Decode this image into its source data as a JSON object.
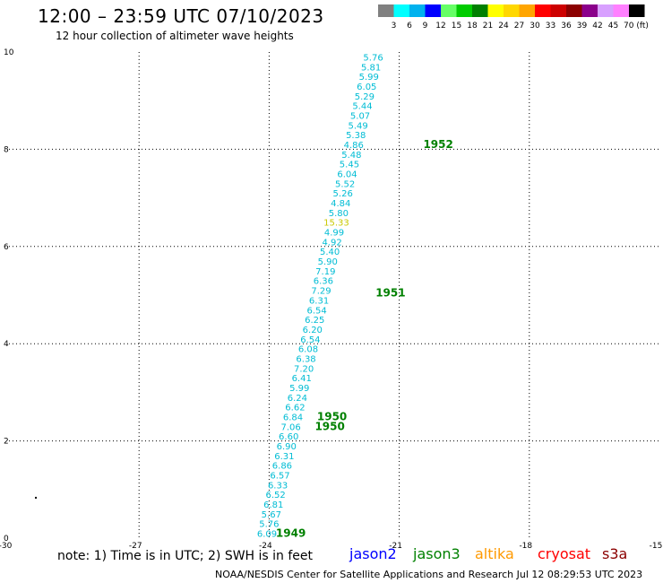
{
  "header": {
    "title": "12:00 – 23:59 UTC 07/10/2023",
    "subtitle": "12 hour collection of altimeter wave heights"
  },
  "footer": {
    "note": "note: 1) Time is in UTC; 2) SWH is in feet",
    "credits": "NOAA/NESDIS Center for Satellite Applications and Research    Jul 12 08:29:53 UTC 2023",
    "satellites": [
      {
        "name": "jason2",
        "color": "#0000ff"
      },
      {
        "name": "jason3",
        "color": "#008000"
      },
      {
        "name": "altika",
        "color": "#ff9900"
      },
      {
        "name": "cryosat",
        "color": "#ff0000"
      },
      {
        "name": "s3a",
        "color": "#8b0000"
      }
    ]
  },
  "color_scale": {
    "labels": [
      "3",
      "6",
      "9",
      "12",
      "15",
      "18",
      "21",
      "24",
      "27",
      "30",
      "33",
      "36",
      "39",
      "42",
      "45",
      "70 (ft)"
    ],
    "colors": [
      "#808080",
      "#00ffff",
      "#00b2ee",
      "#0000ff",
      "#66ff66",
      "#00cc00",
      "#008000",
      "#ffff00",
      "#ffd700",
      "#ffa500",
      "#ff0000",
      "#cd0000",
      "#8b0000",
      "#8b008b",
      "#d8a0ff",
      "#ff80ff",
      "#000000"
    ]
  },
  "chart_data": {
    "type": "scatter",
    "xlabel": "",
    "ylabel": "",
    "xlim": [
      -30,
      -15
    ],
    "ylim": [
      0,
      10
    ],
    "x_ticks": [
      -30,
      -27,
      -24,
      -21,
      -18,
      -15
    ],
    "y_ticks": [
      0,
      2,
      4,
      6,
      8,
      10
    ],
    "grid": true,
    "series": [
      {
        "color": "#00bcd4",
        "points": [
          {
            "x": -24.05,
            "y": 0.1,
            "label": "6.09"
          },
          {
            "x": -24.0,
            "y": 0.3,
            "label": "5.76"
          },
          {
            "x": -23.95,
            "y": 0.5,
            "label": "5.67"
          },
          {
            "x": -23.9,
            "y": 0.7,
            "label": "6.81"
          },
          {
            "x": -23.85,
            "y": 0.9,
            "label": "6.52"
          },
          {
            "x": -23.8,
            "y": 1.1,
            "label": "6.33"
          },
          {
            "x": -23.75,
            "y": 1.3,
            "label": "6.57"
          },
          {
            "x": -23.7,
            "y": 1.5,
            "label": "6.86"
          },
          {
            "x": -23.65,
            "y": 1.7,
            "label": "6.31"
          },
          {
            "x": -23.6,
            "y": 1.9,
            "label": "6.90"
          },
          {
            "x": -23.55,
            "y": 2.1,
            "label": "6.60"
          },
          {
            "x": -23.5,
            "y": 2.3,
            "label": "7.06"
          },
          {
            "x": -23.45,
            "y": 2.5,
            "label": "6.84"
          },
          {
            "x": -23.4,
            "y": 2.7,
            "label": "6.62"
          },
          {
            "x": -23.35,
            "y": 2.9,
            "label": "6.24"
          },
          {
            "x": -23.3,
            "y": 3.1,
            "label": "5.99"
          },
          {
            "x": -23.25,
            "y": 3.3,
            "label": "6.41"
          },
          {
            "x": -23.2,
            "y": 3.5,
            "label": "7.20"
          },
          {
            "x": -23.15,
            "y": 3.7,
            "label": "6.38"
          },
          {
            "x": -23.1,
            "y": 3.9,
            "label": "6.08"
          },
          {
            "x": -23.05,
            "y": 4.1,
            "label": "6.54"
          },
          {
            "x": -23.0,
            "y": 4.3,
            "label": "6.20"
          },
          {
            "x": -22.95,
            "y": 4.5,
            "label": "6.25"
          },
          {
            "x": -22.9,
            "y": 4.7,
            "label": "6.54"
          },
          {
            "x": -22.85,
            "y": 4.9,
            "label": "6.31"
          },
          {
            "x": -22.8,
            "y": 5.1,
            "label": "7.29"
          },
          {
            "x": -22.75,
            "y": 5.3,
            "label": "6.36"
          },
          {
            "x": -22.7,
            "y": 5.5,
            "label": "7.19"
          },
          {
            "x": -22.65,
            "y": 5.7,
            "label": "5.90"
          },
          {
            "x": -22.6,
            "y": 5.9,
            "label": "5.40"
          },
          {
            "x": -22.55,
            "y": 6.1,
            "label": "4.92"
          },
          {
            "x": -22.5,
            "y": 6.3,
            "label": "4.99"
          },
          {
            "x": -22.4,
            "y": 6.7,
            "label": "5.80"
          },
          {
            "x": -22.35,
            "y": 6.9,
            "label": "4.84"
          },
          {
            "x": -22.3,
            "y": 7.1,
            "label": "5.26"
          },
          {
            "x": -22.25,
            "y": 7.3,
            "label": "5.52"
          },
          {
            "x": -22.2,
            "y": 7.5,
            "label": "6.04"
          },
          {
            "x": -22.15,
            "y": 7.7,
            "label": "5.45"
          },
          {
            "x": -22.1,
            "y": 7.9,
            "label": "5.48"
          },
          {
            "x": -22.05,
            "y": 8.1,
            "label": "4.86"
          },
          {
            "x": -22.0,
            "y": 8.3,
            "label": "5.38"
          },
          {
            "x": -21.95,
            "y": 8.5,
            "label": "5.49"
          },
          {
            "x": -21.9,
            "y": 8.7,
            "label": "5.07"
          },
          {
            "x": -21.85,
            "y": 8.9,
            "label": "5.44"
          },
          {
            "x": -21.8,
            "y": 9.1,
            "label": "5.29"
          },
          {
            "x": -21.75,
            "y": 9.3,
            "label": "6.05"
          },
          {
            "x": -21.7,
            "y": 9.5,
            "label": "5.99"
          },
          {
            "x": -21.65,
            "y": 9.7,
            "label": "5.81"
          },
          {
            "x": -21.6,
            "y": 9.9,
            "label": "5.76"
          }
        ]
      },
      {
        "color": "#c8c800",
        "points": [
          {
            "x": -22.45,
            "y": 6.5,
            "label": "15.33"
          }
        ]
      }
    ],
    "time_labels": [
      {
        "x": -23.5,
        "y": 0.1,
        "label": "1949",
        "color": "#008000"
      },
      {
        "x": -22.6,
        "y": 2.3,
        "label": "1950",
        "color": "#008000"
      },
      {
        "x": -22.55,
        "y": 2.5,
        "label": "1950",
        "color": "#008000"
      },
      {
        "x": -21.2,
        "y": 5.05,
        "label": "1951",
        "color": "#008000"
      },
      {
        "x": -20.1,
        "y": 8.1,
        "label": "1952",
        "color": "#008000"
      }
    ],
    "stray_marks": [
      {
        "x": -29.4,
        "y": 0.85
      }
    ]
  }
}
